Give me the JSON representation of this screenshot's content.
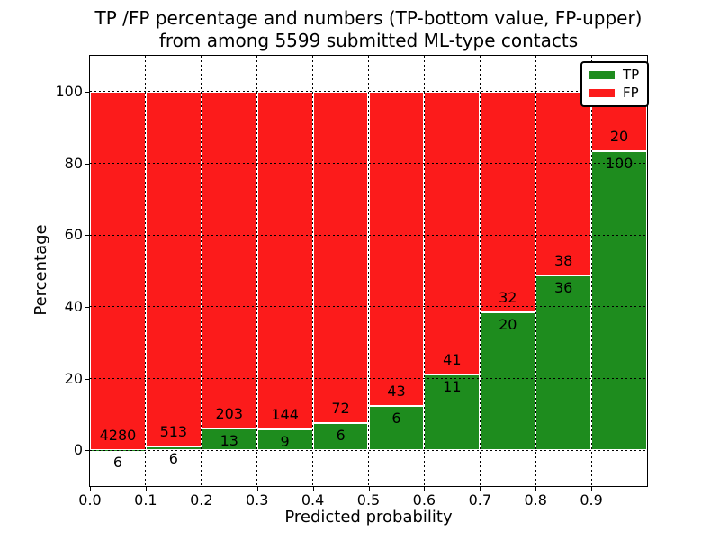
{
  "title": {
    "line1": "TP /FP percentage and numbers (TP-bottom value, FP-upper)",
    "line2": "from among 5599 submitted ML-type contacts"
  },
  "chart_data": {
    "type": "bar",
    "stacked": true,
    "normalized": "each bin stacked to 100%",
    "title": "TP /FP percentage and numbers (TP-bottom value, FP-upper) from among 5599 submitted ML-type contacts",
    "total_contacts": 5599,
    "bins": [
      "0.0-0.1",
      "0.1-0.2",
      "0.2-0.3",
      "0.3-0.4",
      "0.4-0.5",
      "0.5-0.6",
      "0.6-0.7",
      "0.7-0.8",
      "0.8-0.9",
      "0.9-1.0"
    ],
    "series": [
      {
        "name": "TP",
        "color": "#1e8c1e",
        "values": [
          6,
          6,
          13,
          9,
          6,
          6,
          11,
          20,
          36,
          100
        ]
      },
      {
        "name": "FP",
        "color": "#fc1b1b",
        "values": [
          4280,
          513,
          203,
          144,
          72,
          43,
          41,
          32,
          38,
          20
        ]
      }
    ],
    "tp_percent": [
      0.14,
      1.16,
      6.02,
      5.88,
      7.69,
      12.24,
      21.15,
      38.46,
      48.65,
      83.33
    ],
    "xlabel": "Predicted probability",
    "ylabel": "Percentage",
    "xticks": [
      "0.0",
      "0.1",
      "0.2",
      "0.3",
      "0.4",
      "0.5",
      "0.6",
      "0.7",
      "0.8",
      "0.9"
    ],
    "yticks": [
      0,
      20,
      40,
      60,
      80,
      100
    ],
    "xlim": [
      0.0,
      1.0
    ],
    "ylim": [
      -10,
      110
    ],
    "grid": "dotted",
    "bar_edge_color": "#ffffff",
    "legend_position": "upper right"
  }
}
